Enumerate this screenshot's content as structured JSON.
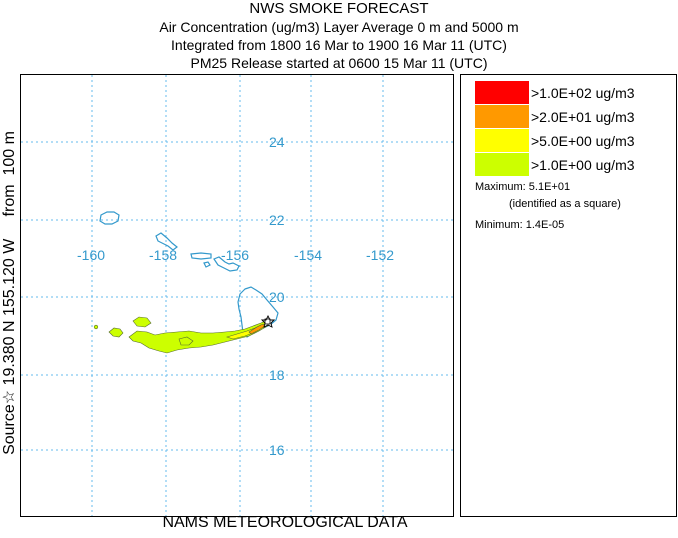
{
  "title": {
    "line1": "NWS SMOKE FORECAST",
    "line2": "Air Concentration (ug/m3) Layer Average    0 m and  5000 m",
    "line3": "Integrated from 1800 16 Mar to 1900 16 Mar 11 (UTC)",
    "line4": "PM25 Release started at 0600 15 Mar 11 (UTC)"
  },
  "side_label": "Source☆ 19.380 N 155.120 W     from  100 m",
  "footer": "NAMS METEOROLOGICAL DATA",
  "map": {
    "longitudes": [
      "-160",
      "-158",
      "-156",
      "-154",
      "-152"
    ],
    "latitudes": [
      "24",
      "22",
      "20",
      "18",
      "16"
    ],
    "coast_color": "#3399cc",
    "grid_color": "#66bbee",
    "source_marker": "star-icon",
    "max_marker": "square-icon"
  },
  "legend": {
    "items": [
      {
        "label": ">1.0E+02 ug/m3",
        "color": "#ff0000"
      },
      {
        "label": ">2.0E+01 ug/m3",
        "color": "#ff9900"
      },
      {
        "label": ">5.0E+00 ug/m3",
        "color": "#ffff00"
      },
      {
        "label": ">1.0E+00 ug/m3",
        "color": "#ccff00"
      }
    ],
    "maximum_label": "Maximum: 5.1E+01",
    "maximum_note": "(identified as a square)",
    "minimum_label": "Minimum: 1.4E-05"
  }
}
